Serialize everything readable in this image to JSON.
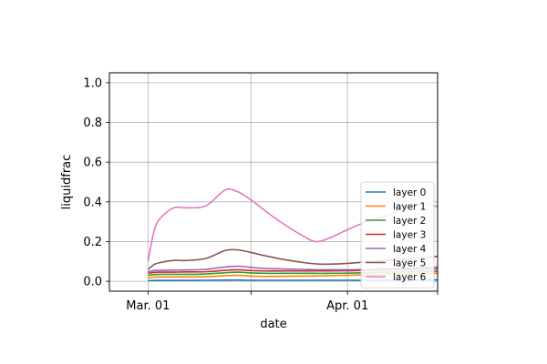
{
  "chart_data": {
    "type": "line",
    "xlabel": "date",
    "ylabel": "liquidfrac",
    "xlim": [
      "2016-02-24",
      "2016-04-15"
    ],
    "ylim": [
      -0.05,
      1.05
    ],
    "grid": true,
    "legend_position": "lower-right",
    "x_ticks": [
      {
        "date": "2016-03-01",
        "label": "Mar. 01"
      },
      {
        "date": "2016-03-17",
        "label": ""
      },
      {
        "date": "2016-04-01",
        "label": "Apr. 01"
      },
      {
        "date": "2016-04-15",
        "label": ""
      }
    ],
    "y_ticks": [
      {
        "value": 0.0,
        "label": "0.0"
      },
      {
        "value": 0.2,
        "label": "0.2"
      },
      {
        "value": 0.4,
        "label": "0.4"
      },
      {
        "value": 0.6,
        "label": "0.6"
      },
      {
        "value": 0.8,
        "label": "0.8"
      },
      {
        "value": 1.0,
        "label": "1.0"
      }
    ],
    "x": [
      "2016-03-01",
      "2016-03-02",
      "2016-03-03",
      "2016-03-05",
      "2016-03-07",
      "2016-03-10",
      "2016-03-13",
      "2016-03-15",
      "2016-03-17",
      "2016-03-19",
      "2016-03-22",
      "2016-03-25",
      "2016-03-27",
      "2016-03-29",
      "2016-04-01",
      "2016-04-04",
      "2016-04-07",
      "2016-04-10",
      "2016-04-13",
      "2016-04-15"
    ],
    "series": [
      {
        "name": "layer 0",
        "color": "#1f77b4",
        "values": [
          0.003,
          0.004,
          0.004,
          0.004,
          0.004,
          0.005,
          0.006,
          0.006,
          0.005,
          0.005,
          0.005,
          0.005,
          0.005,
          0.005,
          0.005,
          0.005,
          0.006,
          0.006,
          0.007,
          0.007
        ]
      },
      {
        "name": "layer 1",
        "color": "#ff7f0e",
        "values": [
          0.018,
          0.021,
          0.022,
          0.022,
          0.022,
          0.023,
          0.028,
          0.03,
          0.026,
          0.024,
          0.025,
          0.026,
          0.027,
          0.028,
          0.03,
          0.033,
          0.035,
          0.038,
          0.04,
          0.04
        ]
      },
      {
        "name": "layer 2",
        "color": "#2ca02c",
        "values": [
          0.03,
          0.034,
          0.035,
          0.035,
          0.035,
          0.037,
          0.043,
          0.046,
          0.042,
          0.04,
          0.04,
          0.04,
          0.04,
          0.04,
          0.041,
          0.043,
          0.046,
          0.048,
          0.05,
          0.05
        ]
      },
      {
        "name": "layer 3",
        "color": "#d62728",
        "values": [
          0.04,
          0.045,
          0.046,
          0.046,
          0.047,
          0.048,
          0.055,
          0.058,
          0.054,
          0.052,
          0.052,
          0.052,
          0.052,
          0.052,
          0.053,
          0.055,
          0.058,
          0.06,
          0.062,
          0.062
        ]
      },
      {
        "name": "layer 4",
        "color": "#9467bd",
        "values": [
          0.048,
          0.054,
          0.055,
          0.056,
          0.057,
          0.06,
          0.072,
          0.076,
          0.07,
          0.065,
          0.062,
          0.06,
          0.058,
          0.058,
          0.058,
          0.06,
          0.063,
          0.066,
          0.07,
          0.072
        ]
      },
      {
        "name": "layer 5",
        "color": "#8c564b",
        "values": [
          0.06,
          0.085,
          0.095,
          0.105,
          0.105,
          0.115,
          0.155,
          0.158,
          0.145,
          0.13,
          0.11,
          0.095,
          0.088,
          0.086,
          0.09,
          0.098,
          0.105,
          0.112,
          0.12,
          0.125
        ]
      },
      {
        "name": "layer 6",
        "color": "#e377c2",
        "values": [
          0.1,
          0.26,
          0.32,
          0.37,
          0.37,
          0.38,
          0.46,
          0.45,
          0.41,
          0.36,
          0.29,
          0.23,
          0.2,
          0.215,
          0.26,
          0.3,
          0.33,
          0.37,
          0.39,
          0.375
        ]
      }
    ]
  }
}
